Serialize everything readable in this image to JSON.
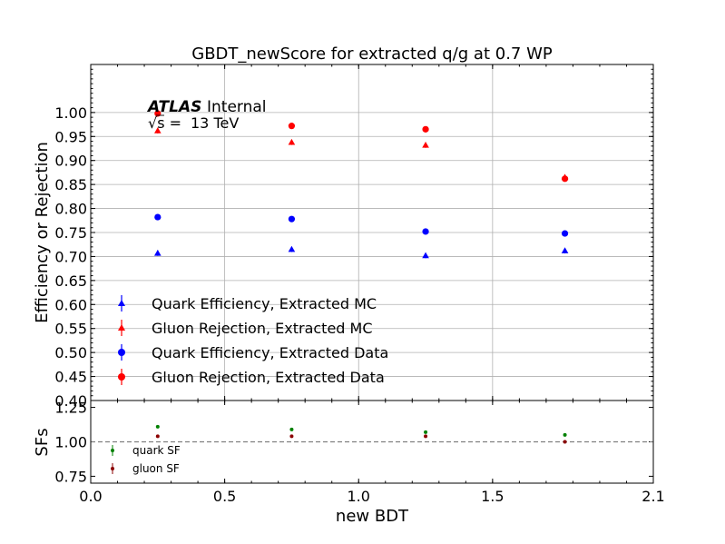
{
  "title": "GBDT_newScore for extracted q/g at 0.7 WP",
  "xlabel": "new BDT",
  "atlas": {
    "label": "ATLAS",
    "status": "Internal",
    "energy": "13 TeV",
    "sqrt_s": "√s = "
  },
  "colors": {
    "blue": "#0000ff",
    "red": "#ff0000",
    "green": "#008000",
    "darkred": "#8b0000"
  },
  "chart_data": [
    {
      "type": "scatter",
      "panel": "main",
      "ylabel": "Efficiency or Rejection",
      "xlim": [
        0.0,
        2.1
      ],
      "ylim": [
        0.4,
        1.1
      ],
      "yticks": [
        "0.40",
        "0.45",
        "0.50",
        "0.55",
        "0.60",
        "0.65",
        "0.70",
        "0.75",
        "0.80",
        "0.85",
        "0.90",
        "0.95",
        "1.00"
      ],
      "grid": true,
      "legend": "lower-left",
      "series": [
        {
          "name": "Quark Efficiency, Extracted MC",
          "marker": "triangle",
          "color": "#0000ff",
          "x": [
            0.25,
            0.75,
            1.25,
            1.77
          ],
          "y": [
            0.707,
            0.715,
            0.702,
            0.712
          ]
        },
        {
          "name": "Gluon Rejection, Extracted MC",
          "marker": "triangle",
          "color": "#ff0000",
          "x": [
            0.25,
            0.75,
            1.25,
            1.77
          ],
          "y": [
            0.962,
            0.938,
            0.932,
            0.865
          ]
        },
        {
          "name": "Quark Efficiency, Extracted Data",
          "marker": "circle",
          "color": "#0000ff",
          "x": [
            0.25,
            0.75,
            1.25,
            1.77
          ],
          "y": [
            0.782,
            0.778,
            0.752,
            0.748
          ]
        },
        {
          "name": "Gluon Rejection, Extracted Data",
          "marker": "circle",
          "color": "#ff0000",
          "x": [
            0.25,
            0.75,
            1.25,
            1.77
          ],
          "y": [
            0.998,
            0.972,
            0.965,
            0.862
          ]
        }
      ]
    },
    {
      "type": "scatter",
      "panel": "ratio",
      "ylabel": "SFs",
      "xlim": [
        0.0,
        2.1
      ],
      "ylim": [
        0.7,
        1.3
      ],
      "yticks": [
        "0.75",
        "1.00",
        "1.25"
      ],
      "xticks": [
        "0.0",
        "0.5",
        "1.0",
        "1.5",
        "2.1"
      ],
      "reference_line": 1.0,
      "grid": false,
      "legend": "lower-left",
      "series": [
        {
          "name": "quark SF",
          "marker": "dot",
          "color": "#008000",
          "x": [
            0.25,
            0.75,
            1.25,
            1.77
          ],
          "y": [
            1.11,
            1.09,
            1.07,
            1.05
          ]
        },
        {
          "name": "gluon SF",
          "marker": "dot",
          "color": "#8b0000",
          "x": [
            0.25,
            0.75,
            1.25,
            1.77
          ],
          "y": [
            1.04,
            1.04,
            1.04,
            1.0
          ]
        }
      ]
    }
  ]
}
